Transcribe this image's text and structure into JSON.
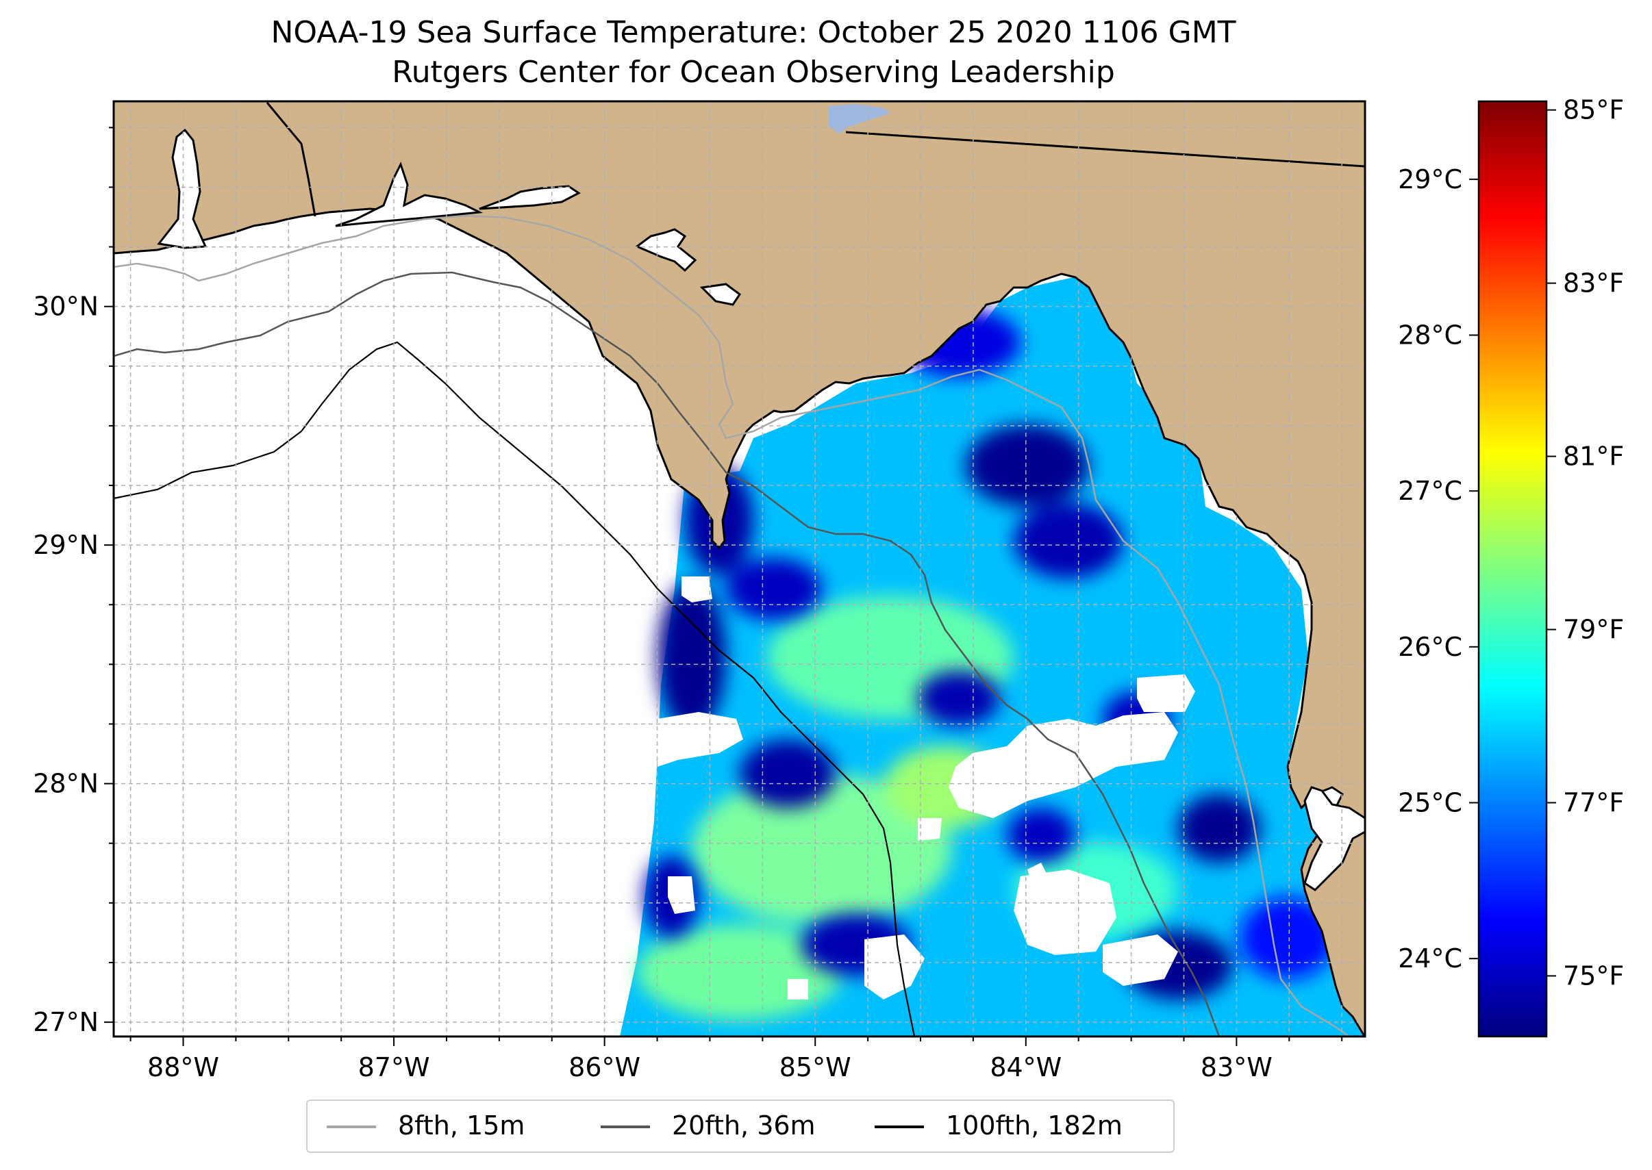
{
  "title": {
    "line1": "NOAA-19 Sea Surface Temperature: October 25 2020 1106 GMT",
    "line2": "Rutgers Center for Ocean Observing Leadership"
  },
  "map": {
    "lon_range": [
      -88.33,
      -82.39
    ],
    "lat_range": [
      26.94,
      30.86
    ],
    "lon_ticks": [
      {
        "value": -88,
        "label": "88°W"
      },
      {
        "value": -87,
        "label": "87°W"
      },
      {
        "value": -86,
        "label": "86°W"
      },
      {
        "value": -85,
        "label": "85°W"
      },
      {
        "value": -84,
        "label": "84°W"
      },
      {
        "value": -83,
        "label": "83°W"
      }
    ],
    "lat_ticks": [
      {
        "value": 27,
        "label": "27°N"
      },
      {
        "value": 28,
        "label": "28°N"
      },
      {
        "value": 29,
        "label": "29°N"
      },
      {
        "value": 30,
        "label": "30°N"
      }
    ],
    "colors": {
      "land": "#d2b48c",
      "coast": "#000000",
      "grid": "#b0b0b0",
      "iso_8fth": "#a6a6a6",
      "iso_20fth": "#555555",
      "iso_100fth": "#000000",
      "lake": "#9fb8e0"
    }
  },
  "colorbar": {
    "celsius_ticks": [
      {
        "value": 24,
        "label": "24°C"
      },
      {
        "value": 25,
        "label": "25°C"
      },
      {
        "value": 26,
        "label": "26°C"
      },
      {
        "value": 27,
        "label": "27°C"
      },
      {
        "value": 28,
        "label": "28°C"
      },
      {
        "value": 29,
        "label": "29°C"
      }
    ],
    "fahrenheit_ticks": [
      {
        "value": 75,
        "label": "75°F"
      },
      {
        "value": 77,
        "label": "77°F"
      },
      {
        "value": 79,
        "label": "79°F"
      },
      {
        "value": 81,
        "label": "81°F"
      },
      {
        "value": 83,
        "label": "83°F"
      },
      {
        "value": 85,
        "label": "85°F"
      }
    ],
    "range_f": [
      74.3,
      85.1
    ],
    "colormap": [
      "#00007f",
      "#0000ff",
      "#0080ff",
      "#00ffff",
      "#80ff80",
      "#ffff00",
      "#ff8000",
      "#ff0000",
      "#7f0000"
    ]
  },
  "legend": {
    "items": [
      {
        "label": "8fth, 15m",
        "color": "#a6a6a6"
      },
      {
        "label": "20fth, 36m",
        "color": "#555555"
      },
      {
        "label": "100fth, 182m",
        "color": "#000000"
      }
    ]
  }
}
